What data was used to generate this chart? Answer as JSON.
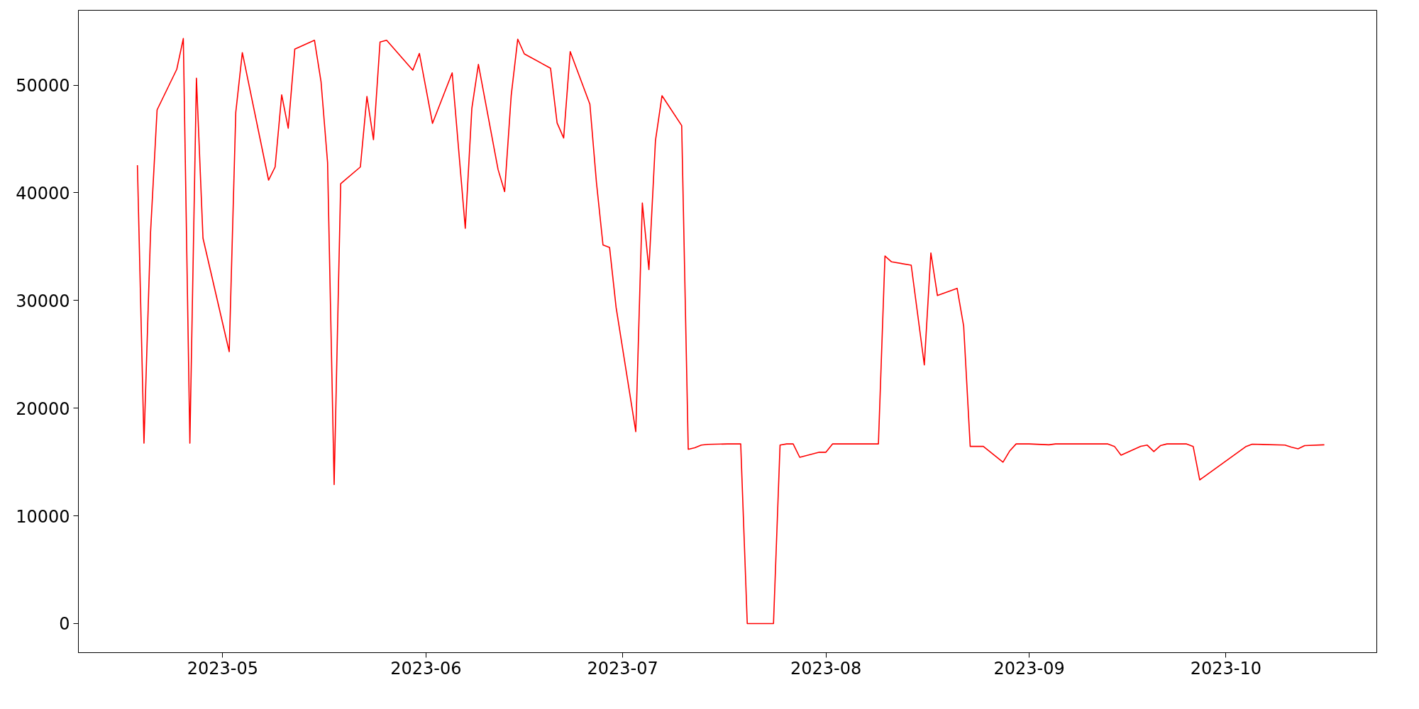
{
  "chart_data": {
    "type": "line",
    "grid": false,
    "marker": "none",
    "line_style": "solid",
    "xlim": [
      "2023-04-09",
      "2023-10-24"
    ],
    "ylim": [
      -2700,
      56950
    ],
    "xticks": [
      {
        "value": "2023-05-01",
        "label": "2023-05"
      },
      {
        "value": "2023-06-01",
        "label": "2023-06"
      },
      {
        "value": "2023-07-01",
        "label": "2023-07"
      },
      {
        "value": "2023-08-01",
        "label": "2023-08"
      },
      {
        "value": "2023-09-01",
        "label": "2023-09"
      },
      {
        "value": "2023-10-01",
        "label": "2023-10"
      }
    ],
    "yticks": [
      0,
      10000,
      20000,
      30000,
      40000,
      50000
    ],
    "x": [
      "2023-04-18",
      "2023-04-19",
      "2023-04-20",
      "2023-04-21",
      "2023-04-24",
      "2023-04-25",
      "2023-04-26",
      "2023-04-27",
      "2023-04-28",
      "2023-05-02",
      "2023-05-03",
      "2023-05-04",
      "2023-05-08",
      "2023-05-09",
      "2023-05-10",
      "2023-05-11",
      "2023-05-12",
      "2023-05-15",
      "2023-05-16",
      "2023-05-17",
      "2023-05-18",
      "2023-05-19",
      "2023-05-22",
      "2023-05-23",
      "2023-05-24",
      "2023-05-25",
      "2023-05-26",
      "2023-05-30",
      "2023-05-31",
      "2023-06-01",
      "2023-06-02",
      "2023-06-05",
      "2023-06-07",
      "2023-06-08",
      "2023-06-09",
      "2023-06-12",
      "2023-06-13",
      "2023-06-14",
      "2023-06-15",
      "2023-06-16",
      "2023-06-20",
      "2023-06-21",
      "2023-06-22",
      "2023-06-23",
      "2023-06-26",
      "2023-06-27",
      "2023-06-28",
      "2023-06-29",
      "2023-06-30",
      "2023-07-03",
      "2023-07-04",
      "2023-07-05",
      "2023-07-06",
      "2023-07-07",
      "2023-07-10",
      "2023-07-11",
      "2023-07-12",
      "2023-07-13",
      "2023-07-14",
      "2023-07-17",
      "2023-07-19",
      "2023-07-20",
      "2023-07-24",
      "2023-07-25",
      "2023-07-26",
      "2023-07-27",
      "2023-07-28",
      "2023-07-31",
      "2023-08-01",
      "2023-08-02",
      "2023-08-09",
      "2023-08-10",
      "2023-08-11",
      "2023-08-14",
      "2023-08-16",
      "2023-08-17",
      "2023-08-18",
      "2023-08-21",
      "2023-08-22",
      "2023-08-23",
      "2023-08-25",
      "2023-08-28",
      "2023-08-29",
      "2023-08-30",
      "2023-09-01",
      "2023-09-04",
      "2023-09-05",
      "2023-09-13",
      "2023-09-14",
      "2023-09-15",
      "2023-09-18",
      "2023-09-19",
      "2023-09-20",
      "2023-09-21",
      "2023-09-22",
      "2023-09-25",
      "2023-09-26",
      "2023-09-27",
      "2023-10-04",
      "2023-10-05",
      "2023-10-10",
      "2023-10-11",
      "2023-10-12",
      "2023-10-13",
      "2023-10-16"
    ],
    "series": [
      {
        "color": "#ff0000",
        "values": [
          42570,
          16750,
          36270,
          47700,
          51470,
          54330,
          16750,
          50650,
          35780,
          25250,
          47470,
          53020,
          41180,
          42400,
          49100,
          46000,
          53350,
          54170,
          50330,
          42810,
          12910,
          40850,
          42400,
          48940,
          44930,
          54000,
          54170,
          51390,
          52940,
          49700,
          46450,
          51140,
          36700,
          47840,
          51920,
          42160,
          40110,
          49020,
          54270,
          52900,
          51570,
          46490,
          45090,
          53110,
          48230,
          40970,
          35160,
          34930,
          29350,
          17820,
          39050,
          32880,
          44850,
          49020,
          46240,
          16180,
          16330,
          16570,
          16640,
          16680,
          16680,
          0,
          0,
          16570,
          16680,
          16680,
          15440,
          15910,
          15910,
          16680,
          16680,
          34130,
          33590,
          33280,
          24020,
          34420,
          30460,
          31130,
          27630,
          16450,
          16450,
          14990,
          16010,
          16680,
          16680,
          16600,
          16680,
          16680,
          16450,
          15640,
          16460,
          16570,
          15970,
          16520,
          16680,
          16680,
          16450,
          13340,
          16420,
          16660,
          16570,
          16380,
          16230,
          16520,
          16600
        ]
      }
    ]
  }
}
